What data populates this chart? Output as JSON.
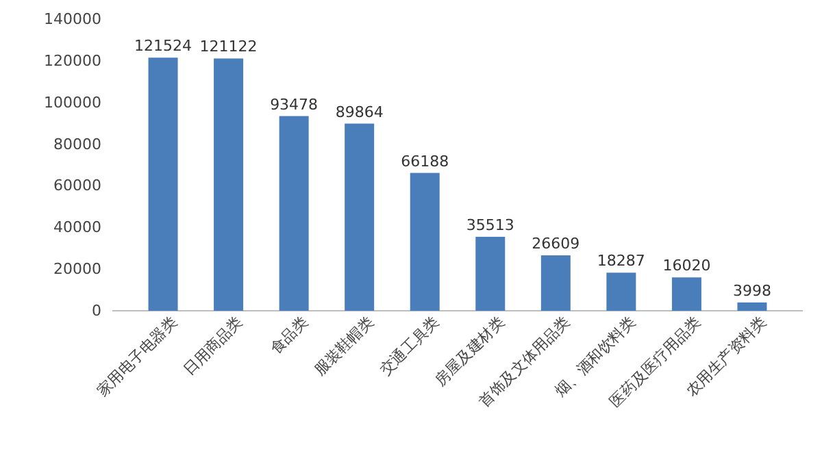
{
  "chart_data": {
    "type": "bar",
    "categories": [
      "家用电子电器类",
      "日用商品类",
      "食品类",
      "服装鞋帽类",
      "交通工具类",
      "房屋及建材类",
      "首饰及文体用品类",
      "烟、酒和饮料类",
      "医药及医疗用品类",
      "农用生产资料类"
    ],
    "values": [
      121524,
      121122,
      93478,
      89864,
      66188,
      35513,
      26609,
      18287,
      16020,
      3998
    ],
    "color": "#4a7ebb",
    "ylim": [
      0,
      140000
    ],
    "yticks": [
      0,
      20000,
      40000,
      60000,
      80000,
      100000,
      120000,
      140000
    ],
    "grid": false,
    "data_labels": true
  }
}
